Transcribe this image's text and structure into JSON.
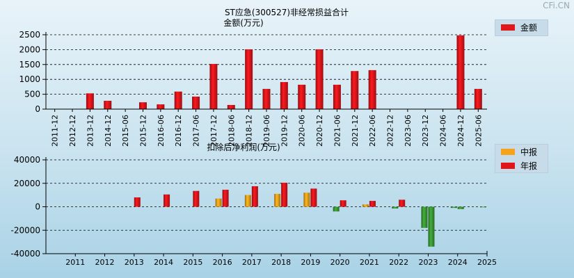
{
  "watermark": "CFi.CN",
  "chart_data": [
    {
      "type": "bar",
      "title": "ST应急(300527)非经常损益合计",
      "ylabel": "金额(万元)",
      "ylim": [
        0,
        2500
      ],
      "yticks": [
        0,
        500,
        1000,
        1500,
        2000,
        2500
      ],
      "grid": true,
      "legend_position": "top-right",
      "categories": [
        "2011-12",
        "2012-12",
        "2013-12",
        "2014-12",
        "2015-06",
        "2015-12",
        "2016-06",
        "2016-12",
        "2017-06",
        "2017-12",
        "2018-06",
        "2018-12",
        "2019-06",
        "2019-12",
        "2020-06",
        "2020-12",
        "2021-06",
        "2021-12",
        "2022-06",
        "2022-12",
        "2023-06",
        "2023-12",
        "2024-06",
        "2024-12",
        "2025-06"
      ],
      "series": [
        {
          "name": "金额",
          "color": "#e0161b",
          "values": [
            0,
            0,
            530,
            280,
            0,
            230,
            160,
            590,
            420,
            1520,
            140,
            2010,
            680,
            910,
            820,
            2010,
            820,
            1280,
            1310,
            0,
            0,
            0,
            0,
            2480,
            680
          ]
        }
      ]
    },
    {
      "type": "bar",
      "title": "扣除后净利润(万元)",
      "ylim": [
        -40000,
        40000
      ],
      "yticks": [
        -40000,
        -20000,
        0,
        20000,
        40000
      ],
      "grid": true,
      "legend_position": "top-right",
      "categories": [
        "2011",
        "2012",
        "2013",
        "2014",
        "2015",
        "2016",
        "2017",
        "2018",
        "2019",
        "2020",
        "2021",
        "2022",
        "2023",
        "2024",
        "2025"
      ],
      "series": [
        {
          "name": "中报",
          "color": "#f6a21a",
          "values": [
            0,
            0,
            0,
            0,
            0,
            7000,
            10000,
            11000,
            12000,
            -4000,
            2000,
            -1500,
            -18000,
            -1000,
            -500
          ]
        },
        {
          "name": "年报",
          "color": "#e0161b",
          "values": [
            0,
            0,
            8000,
            10500,
            13500,
            14500,
            17500,
            20500,
            15500,
            5500,
            5000,
            6000,
            -34000,
            -2000,
            null
          ]
        }
      ]
    }
  ]
}
